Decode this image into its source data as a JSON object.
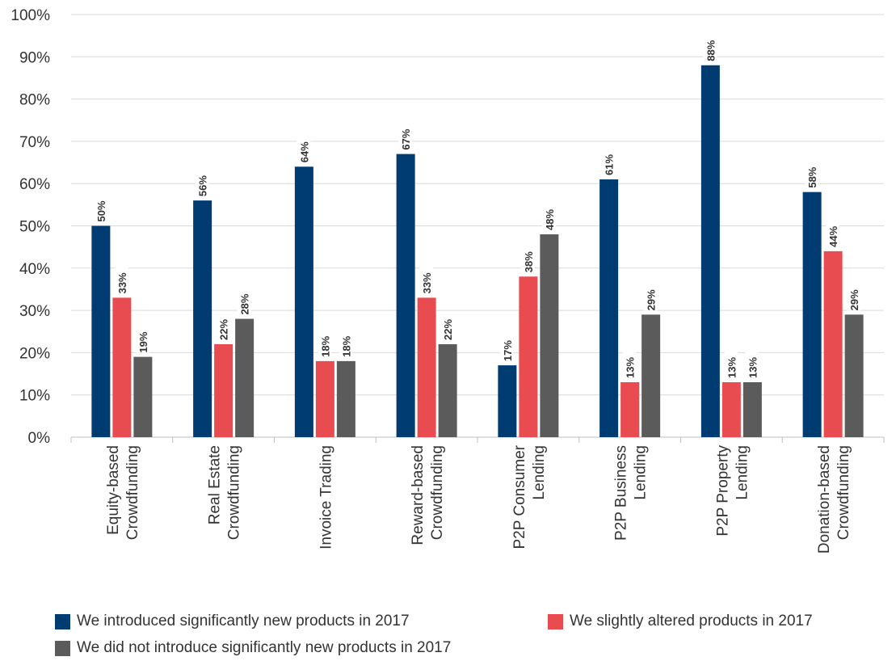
{
  "chart_data": {
    "type": "bar",
    "categories": [
      [
        "Equity-based",
        "Crowdfunding"
      ],
      [
        "Real Estate",
        "Crowdfunding"
      ],
      [
        "Invoice Trading"
      ],
      [
        "Reward-based",
        "Crowdfunding"
      ],
      [
        "P2P Consumer",
        "Lending"
      ],
      [
        "P2P Business",
        "Lending"
      ],
      [
        "P2P Property",
        "Lending"
      ],
      [
        "Donation-based",
        "Crowdfunding"
      ]
    ],
    "series": [
      {
        "name": "We introduced significantly new products in 2017",
        "color": "#003b71",
        "values": [
          50,
          56,
          64,
          67,
          17,
          61,
          88,
          58
        ],
        "labels": [
          "50%",
          "56%",
          "64%",
          "67%",
          "17%",
          "61%",
          "88%",
          "58%"
        ]
      },
      {
        "name": "We slightly altered products in 2017",
        "color": "#e84c51",
        "values": [
          33,
          22,
          18,
          33,
          38,
          13,
          13,
          44
        ],
        "labels": [
          "33%",
          "22%",
          "18%",
          "33%",
          "38%",
          "13%",
          "13%",
          "44%"
        ]
      },
      {
        "name": "We did not introduce significantly new products in 2017",
        "color": "#5b5b5b",
        "values": [
          19,
          28,
          18,
          22,
          48,
          29,
          13,
          29
        ],
        "labels": [
          "19%",
          "28%",
          "18%",
          "22%",
          "48%",
          "29%",
          "13%",
          "29%"
        ]
      }
    ],
    "ylim": [
      0,
      100
    ],
    "yticks": [
      "0%",
      "10%",
      "20%",
      "30%",
      "40%",
      "50%",
      "60%",
      "70%",
      "80%",
      "90%",
      "100%"
    ],
    "grid": true,
    "legend_position": "bottom"
  }
}
